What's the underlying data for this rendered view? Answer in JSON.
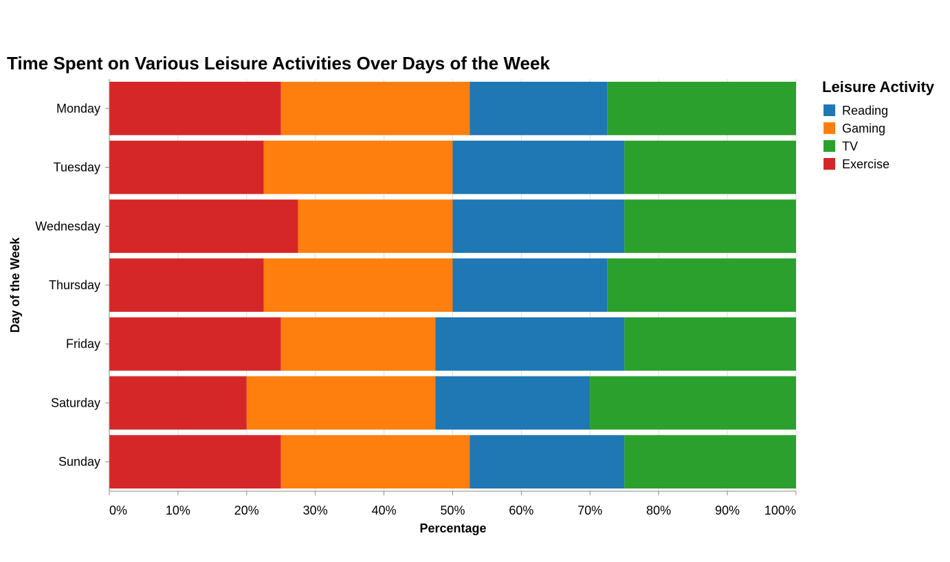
{
  "chart_data": {
    "type": "bar",
    "orientation": "horizontal",
    "stacked": "normalize",
    "title": "Time Spent on Various Leisure Activities Over Days of the Week",
    "xlabel": "Percentage",
    "ylabel": "Day of the Week",
    "xlim": [
      0,
      100
    ],
    "x_ticks": [
      "0%",
      "10%",
      "20%",
      "30%",
      "40%",
      "50%",
      "60%",
      "70%",
      "80%",
      "90%",
      "100%"
    ],
    "grid": true,
    "legend_title": "Leisure Activity",
    "legend_position": "top-right",
    "categories": [
      "Monday",
      "Tuesday",
      "Wednesday",
      "Thursday",
      "Friday",
      "Saturday",
      "Sunday"
    ],
    "series": [
      {
        "name": "Exercise",
        "color": "#d62728",
        "values": [
          25.0,
          22.5,
          27.5,
          22.5,
          25.0,
          20.0,
          25.0
        ]
      },
      {
        "name": "Gaming",
        "color": "#ff7f0e",
        "values": [
          27.5,
          27.5,
          22.5,
          27.5,
          22.5,
          27.5,
          27.5
        ]
      },
      {
        "name": "Reading",
        "color": "#1f77b4",
        "values": [
          20.0,
          25.0,
          25.0,
          22.5,
          27.5,
          22.5,
          22.5
        ]
      },
      {
        "name": "TV",
        "color": "#2ca02c",
        "values": [
          27.5,
          25.0,
          25.0,
          27.5,
          25.0,
          30.0,
          25.0
        ]
      }
    ],
    "legend_order": [
      "Reading",
      "Gaming",
      "TV",
      "Exercise"
    ]
  }
}
